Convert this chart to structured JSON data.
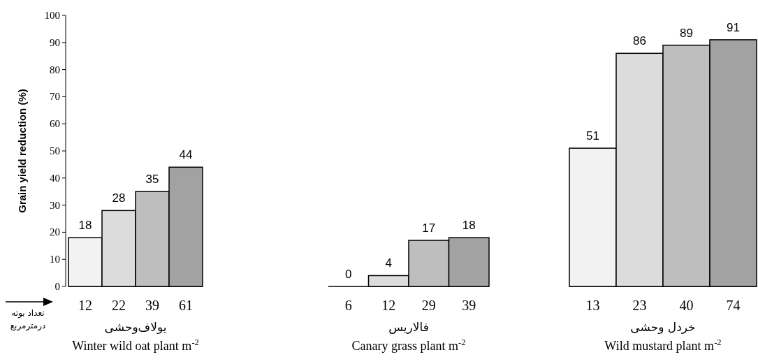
{
  "chart_data": [
    {
      "type": "bar",
      "categories": [
        "12",
        "22",
        "39",
        "61"
      ],
      "values": [
        18,
        28,
        35,
        44
      ],
      "colors": [
        "#f2f2f2",
        "#dcdcdc",
        "#bebebe",
        "#a2a2a2"
      ],
      "data_labels": true,
      "ylim": [
        0,
        100
      ],
      "yticks": [
        0,
        10,
        20,
        30,
        40,
        50,
        60,
        70,
        80,
        90,
        100
      ],
      "ylabel": "Grain yield reduction (%)",
      "xlabel": "یولاف‌وحشی\nWinter wild oat plant m$^{-2}$",
      "annotations": [
        "تعداد بوته\nدرمترمربع"
      ]
    },
    {
      "type": "bar",
      "categories": [
        "6",
        "12",
        "29",
        "39"
      ],
      "values": [
        0,
        4,
        17,
        18
      ],
      "colors": [
        "#f2f2f2",
        "#dcdcdc",
        "#bebebe",
        "#a2a2a2"
      ],
      "data_labels": true,
      "ylim": [
        0,
        100
      ],
      "tick_labels": "x",
      "xlabel": "فالاریس\nCanary grass plant m$^{-2}$"
    },
    {
      "type": "bar",
      "categories": [
        "13",
        "23",
        "40",
        "74"
      ],
      "values": [
        51,
        86,
        89,
        91
      ],
      "colors": [
        "#f2f2f2",
        "#dcdcdc",
        "#bebebe",
        "#a2a2a2"
      ],
      "data_labels": true,
      "ylim": [
        0,
        100
      ],
      "tick_labels": "x",
      "xlabel": "خردل وحشی\nWild mustard plant m$^{-2}$"
    }
  ]
}
